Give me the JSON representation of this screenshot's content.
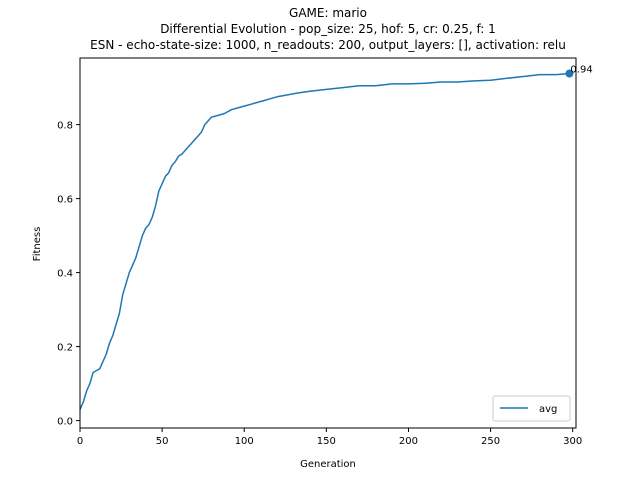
{
  "chart_data": {
    "type": "line",
    "title_lines": [
      "GAME: mario",
      "Differential Evolution - pop_size: 25, hof: 5, cr: 0.25, f: 1",
      "ESN - echo-state-size: 1000, n_readouts: 200, output_layers: [], activation: relu"
    ],
    "xlabel": "Generation",
    "ylabel": "Fitness",
    "xlim": [
      0,
      302
    ],
    "ylim": [
      -0.02,
      0.98
    ],
    "xticks": [
      0,
      50,
      100,
      150,
      200,
      250,
      300
    ],
    "yticks": [
      0.0,
      0.2,
      0.4,
      0.6,
      0.8
    ],
    "ytick_labels": [
      "0.0",
      "0.2",
      "0.4",
      "0.6",
      "0.8"
    ],
    "grid": false,
    "legend_position": "lower-right",
    "series": [
      {
        "name": "avg",
        "color": "#1f77b4",
        "x": [
          0,
          2,
          4,
          6,
          8,
          10,
          12,
          14,
          16,
          18,
          20,
          22,
          24,
          26,
          28,
          30,
          32,
          34,
          36,
          38,
          40,
          42,
          44,
          46,
          48,
          50,
          52,
          54,
          56,
          58,
          60,
          62,
          64,
          66,
          68,
          70,
          72,
          74,
          76,
          78,
          80,
          84,
          88,
          92,
          96,
          100,
          104,
          108,
          112,
          116,
          120,
          126,
          132,
          140,
          150,
          160,
          170,
          180,
          190,
          200,
          210,
          220,
          230,
          240,
          250,
          260,
          270,
          280,
          290,
          298
        ],
        "y": [
          0.03,
          0.05,
          0.08,
          0.1,
          0.13,
          0.135,
          0.14,
          0.16,
          0.18,
          0.21,
          0.23,
          0.26,
          0.29,
          0.34,
          0.37,
          0.4,
          0.42,
          0.44,
          0.47,
          0.5,
          0.52,
          0.53,
          0.55,
          0.58,
          0.62,
          0.64,
          0.66,
          0.67,
          0.69,
          0.7,
          0.715,
          0.72,
          0.73,
          0.74,
          0.75,
          0.76,
          0.77,
          0.78,
          0.8,
          0.81,
          0.82,
          0.825,
          0.83,
          0.84,
          0.845,
          0.85,
          0.855,
          0.86,
          0.865,
          0.87,
          0.875,
          0.88,
          0.885,
          0.89,
          0.895,
          0.9,
          0.905,
          0.905,
          0.91,
          0.91,
          0.912,
          0.915,
          0.915,
          0.918,
          0.92,
          0.925,
          0.93,
          0.935,
          0.935,
          0.938
        ]
      }
    ],
    "annotation": {
      "x": 298,
      "y": 0.938,
      "text": "0.94"
    }
  }
}
